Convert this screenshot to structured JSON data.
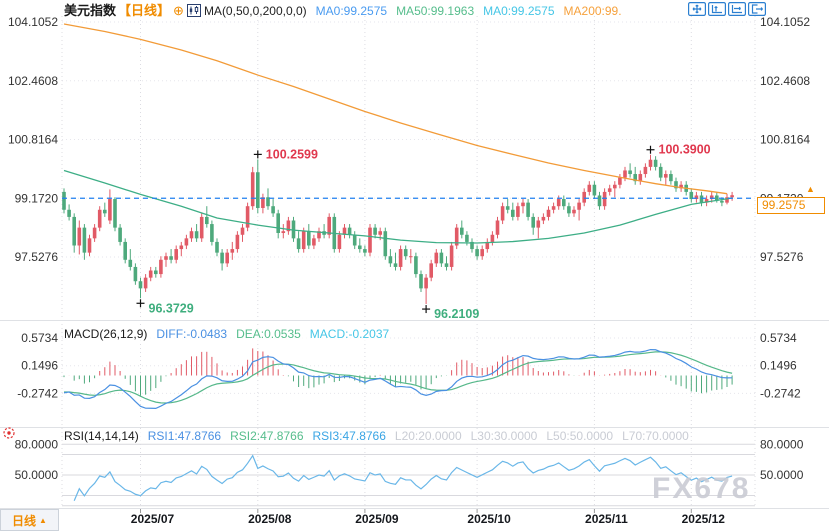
{
  "header": {
    "symbol": "美元指数",
    "timeframe": "【日线】",
    "ma_settings": "MA(0,50,0,200,0,0)",
    "ma0": "MA0:99.2575",
    "ma50": "MA50:99.1963",
    "ma0b": "MA0:99.2575",
    "ma200": "MA200:99."
  },
  "toolbar": {
    "icons": [
      "pan-icon",
      "auto-scale-icon",
      "scale-x-icon",
      "exit-fullscreen-icon"
    ]
  },
  "price_label": {
    "value": "99.2575",
    "arrow": "▲"
  },
  "macd_header": {
    "label": "MACD(26,12,9)",
    "diff": "DIFF:-0.0483",
    "dea": "DEA:0.0535",
    "macd": "MACD:-0.2037"
  },
  "rsi_header": {
    "label": "RSI(14,14,14)",
    "rsi1": "RSI1:47.8766",
    "rsi2": "RSI2:47.8766",
    "rsi3": "RSI3:47.8766",
    "l20": "L20:20.0000",
    "l30": "L30:30.0000",
    "l50": "L50:50.0000",
    "l70": "L70:70.0000"
  },
  "period_button": {
    "label": "日线",
    "arrow": "▲"
  },
  "watermark": "FX678",
  "chart_data": {
    "type": "candlestick-with-indicators",
    "title": "美元指数 日线 (US Dollar Index, Daily)",
    "main": {
      "yticks": [
        {
          "label": "104.1052",
          "value": 104.1052
        },
        {
          "label": "102.4608",
          "value": 102.4608
        },
        {
          "label": "100.8164",
          "value": 100.8164
        },
        {
          "label": "99.1720",
          "value": 99.172
        },
        {
          "label": "97.5276",
          "value": 97.5276
        }
      ],
      "last_close_line": 99.172,
      "current_price": 99.2575,
      "annotations": [
        {
          "text": "100.2599",
          "value": 100.2599,
          "index": 38,
          "dir": "above"
        },
        {
          "text": "96.3729",
          "value": 96.3729,
          "index": 15,
          "dir": "below"
        },
        {
          "text": "96.2109",
          "value": 96.2109,
          "index": 71,
          "dir": "below"
        },
        {
          "text": "100.3900",
          "value": 100.39,
          "index": 115,
          "dir": "above"
        }
      ],
      "ma50": [
        [
          0,
          99.95
        ],
        [
          8,
          99.6
        ],
        [
          15,
          99.28
        ],
        [
          23,
          98.95
        ],
        [
          30,
          98.62
        ],
        [
          38,
          98.42
        ],
        [
          45,
          98.28
        ],
        [
          52,
          98.2
        ],
        [
          59,
          98.12
        ],
        [
          66,
          98.0
        ],
        [
          73,
          97.93
        ],
        [
          81,
          97.92
        ],
        [
          88,
          97.96
        ],
        [
          95,
          98.05
        ],
        [
          102,
          98.2
        ],
        [
          109,
          98.42
        ],
        [
          116,
          98.72
        ],
        [
          123,
          99.0
        ],
        [
          131,
          99.18
        ]
      ],
      "ma200": [
        [
          0,
          104.05
        ],
        [
          8,
          103.84
        ],
        [
          15,
          103.62
        ],
        [
          23,
          103.32
        ],
        [
          30,
          103.02
        ],
        [
          38,
          102.62
        ],
        [
          45,
          102.3
        ],
        [
          52,
          101.95
        ],
        [
          59,
          101.6
        ],
        [
          66,
          101.28
        ],
        [
          73,
          100.98
        ],
        [
          81,
          100.65
        ],
        [
          88,
          100.4
        ],
        [
          95,
          100.16
        ],
        [
          102,
          99.95
        ],
        [
          109,
          99.76
        ],
        [
          116,
          99.58
        ],
        [
          121,
          99.47
        ],
        [
          126,
          99.38
        ],
        [
          130,
          99.3
        ]
      ],
      "candles": [
        [
          99.35,
          99.45,
          98.75,
          98.85
        ],
        [
          98.85,
          99.0,
          98.55,
          98.65
        ],
        [
          98.65,
          98.75,
          97.65,
          97.85
        ],
        [
          97.85,
          98.55,
          97.6,
          98.35
        ],
        [
          98.35,
          98.45,
          97.45,
          97.65
        ],
        [
          97.65,
          98.15,
          97.55,
          98.05
        ],
        [
          98.05,
          98.45,
          97.95,
          98.35
        ],
        [
          98.35,
          98.95,
          98.25,
          98.85
        ],
        [
          98.85,
          99.05,
          98.65,
          98.75
        ],
        [
          98.55,
          99.42,
          98.45,
          99.15
        ],
        [
          99.15,
          99.2,
          98.25,
          98.35
        ],
        [
          98.35,
          98.45,
          97.85,
          97.95
        ],
        [
          97.95,
          98.05,
          97.35,
          97.45
        ],
        [
          97.45,
          97.75,
          97.15,
          97.25
        ],
        [
          97.25,
          97.35,
          96.75,
          96.85
        ],
        [
          96.85,
          96.95,
          96.3729,
          96.65
        ],
        [
          96.65,
          97.05,
          96.55,
          96.95
        ],
        [
          96.95,
          97.25,
          96.85,
          97.15
        ],
        [
          97.15,
          97.25,
          96.95,
          97.05
        ],
        [
          97.05,
          97.55,
          96.95,
          97.45
        ],
        [
          97.45,
          97.65,
          97.25,
          97.55
        ],
        [
          97.55,
          97.75,
          97.35,
          97.45
        ],
        [
          97.45,
          97.85,
          97.35,
          97.75
        ],
        [
          97.75,
          97.95,
          97.55,
          97.85
        ],
        [
          97.85,
          98.15,
          97.75,
          98.05
        ],
        [
          98.05,
          98.35,
          97.95,
          98.25
        ],
        [
          98.25,
          98.45,
          97.95,
          98.05
        ],
        [
          98.05,
          98.75,
          97.95,
          98.65
        ],
        [
          98.65,
          98.95,
          98.35,
          98.45
        ],
        [
          98.45,
          98.55,
          97.85,
          97.95
        ],
        [
          97.95,
          98.05,
          97.55,
          97.65
        ],
        [
          97.65,
          97.75,
          97.15,
          97.35
        ],
        [
          97.35,
          97.75,
          97.25,
          97.65
        ],
        [
          97.65,
          97.95,
          97.45,
          97.75
        ],
        [
          97.75,
          98.25,
          97.65,
          98.15
        ],
        [
          98.15,
          98.45,
          97.95,
          98.35
        ],
        [
          98.35,
          99.05,
          98.25,
          98.95
        ],
        [
          98.95,
          100.05,
          98.85,
          99.9
        ],
        [
          99.9,
          100.2599,
          98.75,
          98.9
        ],
        [
          98.9,
          99.3,
          98.75,
          99.2
        ],
        [
          99.2,
          99.45,
          98.85,
          98.95
        ],
        [
          98.95,
          99.15,
          98.65,
          98.75
        ],
        [
          98.75,
          98.85,
          98.05,
          98.2
        ],
        [
          98.2,
          98.45,
          98.05,
          98.25
        ],
        [
          98.25,
          98.65,
          98.15,
          98.55
        ],
        [
          98.55,
          98.65,
          97.95,
          98.05
        ],
        [
          98.05,
          98.25,
          97.65,
          97.75
        ],
        [
          97.75,
          98.35,
          97.65,
          98.25
        ],
        [
          98.25,
          98.45,
          97.75,
          97.85
        ],
        [
          97.85,
          98.15,
          97.75,
          98.05
        ],
        [
          98.05,
          98.35,
          97.95,
          98.25
        ],
        [
          98.25,
          98.45,
          98.05,
          98.15
        ],
        [
          98.15,
          98.75,
          98.05,
          98.65
        ],
        [
          98.65,
          98.75,
          97.65,
          97.75
        ],
        [
          97.75,
          98.25,
          97.65,
          98.15
        ],
        [
          98.15,
          98.45,
          98.05,
          98.35
        ],
        [
          98.35,
          98.45,
          98.05,
          98.15
        ],
        [
          98.15,
          98.25,
          97.75,
          97.85
        ],
        [
          97.85,
          98.05,
          97.65,
          97.75
        ],
        [
          97.75,
          97.85,
          97.55,
          97.65
        ],
        [
          97.65,
          98.45,
          97.55,
          98.35
        ],
        [
          98.35,
          98.45,
          98.05,
          98.15
        ],
        [
          98.15,
          98.35,
          98.0,
          98.25
        ],
        [
          98.25,
          98.35,
          97.45,
          97.55
        ],
        [
          97.55,
          97.75,
          97.25,
          97.35
        ],
        [
          97.35,
          97.65,
          97.15,
          97.25
        ],
        [
          97.25,
          97.85,
          97.15,
          97.75
        ],
        [
          97.75,
          97.85,
          97.45,
          97.55
        ],
        [
          97.55,
          97.75,
          97.35,
          97.55
        ],
        [
          97.55,
          97.65,
          96.95,
          97.05
        ],
        [
          97.05,
          97.15,
          96.55,
          96.65
        ],
        [
          96.65,
          97.05,
          96.2109,
          96.95
        ],
        [
          96.95,
          97.45,
          96.85,
          97.35
        ],
        [
          97.35,
          97.75,
          97.25,
          97.65
        ],
        [
          97.65,
          97.75,
          97.25,
          97.35
        ],
        [
          97.35,
          97.55,
          97.15,
          97.25
        ],
        [
          97.25,
          97.95,
          97.15,
          97.85
        ],
        [
          97.85,
          98.45,
          97.75,
          98.35
        ],
        [
          98.35,
          98.55,
          98.05,
          98.15
        ],
        [
          98.15,
          98.25,
          97.85,
          97.95
        ],
        [
          97.95,
          98.05,
          97.65,
          97.75
        ],
        [
          97.75,
          97.85,
          97.45,
          97.55
        ],
        [
          97.55,
          97.85,
          97.45,
          97.75
        ],
        [
          97.75,
          98.05,
          97.65,
          97.95
        ],
        [
          97.95,
          98.25,
          97.85,
          98.15
        ],
        [
          98.15,
          98.65,
          98.05,
          98.55
        ],
        [
          98.55,
          99.05,
          98.45,
          98.95
        ],
        [
          98.95,
          99.15,
          98.75,
          98.85
        ],
        [
          98.85,
          99.05,
          98.55,
          98.65
        ],
        [
          98.65,
          99.05,
          98.55,
          98.95
        ],
        [
          98.95,
          99.15,
          98.75,
          99.05
        ],
        [
          99.05,
          99.15,
          98.55,
          98.65
        ],
        [
          98.65,
          98.75,
          98.15,
          98.35
        ],
        [
          98.35,
          98.65,
          98.05,
          98.55
        ],
        [
          98.55,
          98.75,
          98.45,
          98.65
        ],
        [
          98.65,
          98.95,
          98.55,
          98.85
        ],
        [
          98.85,
          99.05,
          98.75,
          98.95
        ],
        [
          98.95,
          99.25,
          98.85,
          99.15
        ],
        [
          99.15,
          99.25,
          98.85,
          98.95
        ],
        [
          98.95,
          99.05,
          98.65,
          98.75
        ],
        [
          98.75,
          98.95,
          98.65,
          98.85
        ],
        [
          98.85,
          99.15,
          98.55,
          99.05
        ],
        [
          99.05,
          99.45,
          98.95,
          99.35
        ],
        [
          99.35,
          99.65,
          99.25,
          99.55
        ],
        [
          99.55,
          99.65,
          99.15,
          99.25
        ],
        [
          99.25,
          99.35,
          98.85,
          98.95
        ],
        [
          98.95,
          99.45,
          98.85,
          99.35
        ],
        [
          99.35,
          99.55,
          99.25,
          99.45
        ],
        [
          99.45,
          99.65,
          99.2,
          99.55
        ],
        [
          99.55,
          99.85,
          99.45,
          99.75
        ],
        [
          99.75,
          100.05,
          99.65,
          99.95
        ],
        [
          99.95,
          100.15,
          99.75,
          99.85
        ],
        [
          99.85,
          100.05,
          99.55,
          99.65
        ],
        [
          99.65,
          99.95,
          99.55,
          99.85
        ],
        [
          99.85,
          100.15,
          99.75,
          100.05
        ],
        [
          100.05,
          100.39,
          99.95,
          100.25
        ],
        [
          100.25,
          100.35,
          99.95,
          100.05
        ],
        [
          100.05,
          100.15,
          99.65,
          99.75
        ],
        [
          99.75,
          99.95,
          99.55,
          99.85
        ],
        [
          99.85,
          99.95,
          99.55,
          99.65
        ],
        [
          99.65,
          99.75,
          99.35,
          99.45
        ],
        [
          99.45,
          99.65,
          99.35,
          99.55
        ],
        [
          99.55,
          99.65,
          99.25,
          99.35
        ],
        [
          99.35,
          99.45,
          99.05,
          99.15
        ],
        [
          99.15,
          99.35,
          99.05,
          99.25
        ],
        [
          99.25,
          99.35,
          98.95,
          99.05
        ],
        [
          99.05,
          99.25,
          98.95,
          99.15
        ],
        [
          99.15,
          99.35,
          99.05,
          99.25
        ],
        [
          99.25,
          99.35,
          99.05,
          99.1
        ],
        [
          99.1,
          99.2,
          98.95,
          99.05
        ],
        [
          99.05,
          99.3,
          99.0,
          99.2
        ],
        [
          99.2,
          99.35,
          99.1,
          99.2575
        ]
      ]
    },
    "months": [
      {
        "label": "2025/07",
        "index": 15
      },
      {
        "label": "2025/08",
        "index": 38
      },
      {
        "label": "2025/09",
        "index": 59
      },
      {
        "label": "2025/10",
        "index": 81
      },
      {
        "label": "2025/11",
        "index": 104
      },
      {
        "label": "2025/12",
        "index": 123
      }
    ],
    "macd": {
      "params": "(26,12,9)",
      "yticks": [
        {
          "label": "0.5734",
          "value": 0.5734
        },
        {
          "label": "0.1496",
          "value": 0.1496
        },
        {
          "label": "-0.2742",
          "value": -0.2742
        }
      ]
    },
    "rsi": {
      "params": "(14,14,14)",
      "yticks": [
        {
          "label": "80.0000",
          "value": 80
        },
        {
          "label": "50.0000",
          "value": 50
        }
      ],
      "levels": [
        20,
        30,
        50,
        70,
        80
      ]
    },
    "colors": {
      "up": "#e15a66",
      "down": "#4ea97c",
      "ma50_line": "#3dae86",
      "ma200_line": "#f29b38",
      "close_line": "#2080f0",
      "diff_line": "#4a90e2",
      "dea_line": "#56b88a",
      "rsi_line": "#6ab7e8",
      "annotation_up": "#e0384e",
      "annotation_down": "#3fae7e",
      "accent": "#f08c00"
    }
  }
}
